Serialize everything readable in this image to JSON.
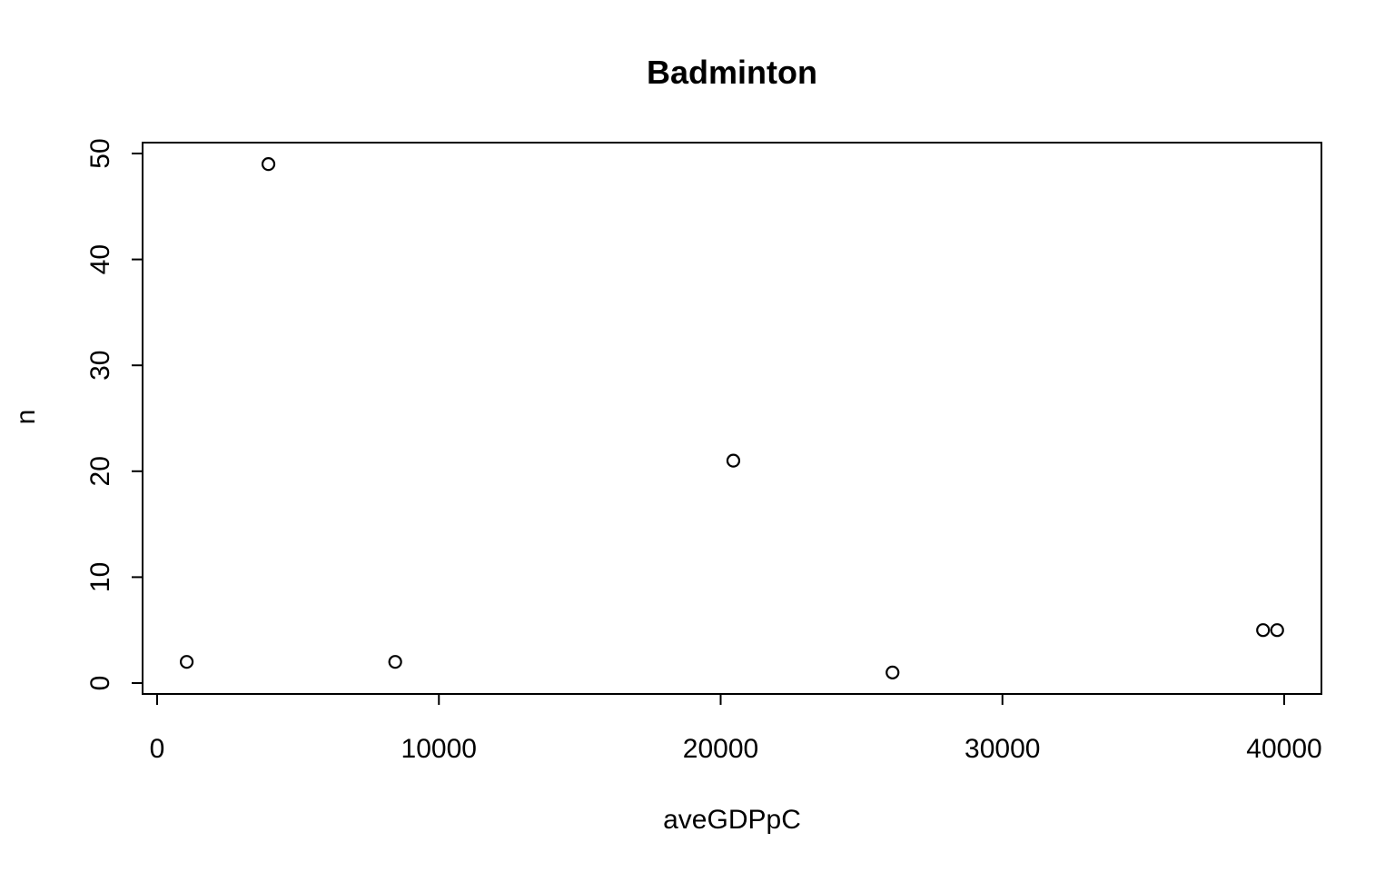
{
  "chart_data": {
    "type": "scatter",
    "title": "Badminton",
    "xlabel": "aveGDPpC",
    "ylabel": "n",
    "xlim": [
      0,
      40000
    ],
    "ylim": [
      0,
      50
    ],
    "xticks": [
      0,
      10000,
      20000,
      30000,
      40000
    ],
    "yticks": [
      0,
      10,
      20,
      30,
      40,
      50
    ],
    "xtick_labels": [
      "0",
      "10000",
      "20000",
      "30000",
      "40000"
    ],
    "ytick_labels": [
      "0",
      "10",
      "20",
      "30",
      "40",
      "50"
    ],
    "grid": false,
    "marker": "open-circle",
    "points": [
      {
        "x": 1050,
        "y": 2
      },
      {
        "x": 3950,
        "y": 49
      },
      {
        "x": 8450,
        "y": 2
      },
      {
        "x": 20450,
        "y": 21
      },
      {
        "x": 26100,
        "y": 1
      },
      {
        "x": 39250,
        "y": 5
      },
      {
        "x": 39750,
        "y": 5
      }
    ]
  }
}
